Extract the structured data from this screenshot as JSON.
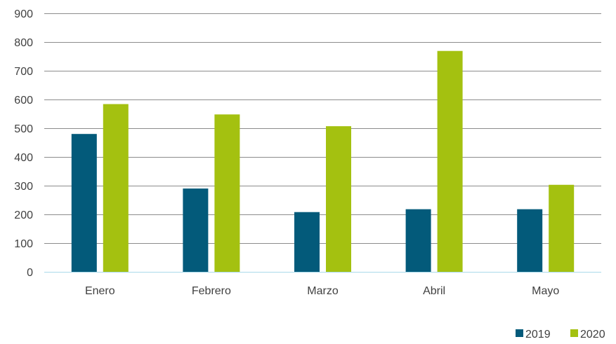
{
  "chart_data": {
    "type": "bar",
    "categories": [
      "Enero",
      "Febrero",
      "Marzo",
      "Abril",
      "Mayo"
    ],
    "series": [
      {
        "name": "2019",
        "values": [
          480,
          290,
          208,
          218,
          218
        ],
        "color": "#035a7a"
      },
      {
        "name": "2020",
        "values": [
          584,
          548,
          507,
          769,
          303
        ],
        "color": "#a4c110"
      }
    ],
    "ylim": [
      0,
      900
    ],
    "yticks": [
      0,
      100,
      200,
      300,
      400,
      500,
      600,
      700,
      800,
      900
    ],
    "grid": true,
    "legend_position": "bottom-right",
    "gridline_color": "#8c8c8c",
    "baseline_color": "#a9d9ea"
  }
}
